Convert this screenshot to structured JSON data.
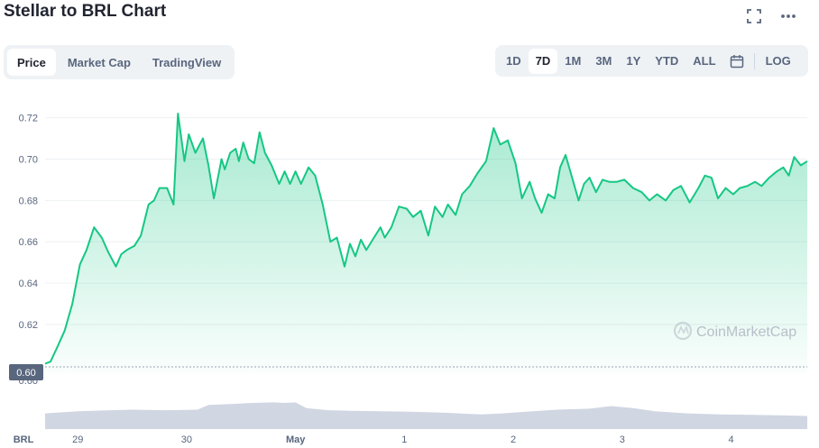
{
  "title": "Stellar to BRL Chart",
  "header_icons": {
    "expand": "expand-icon",
    "more": "more-icon"
  },
  "tabs": [
    {
      "label": "Price",
      "active": true
    },
    {
      "label": "Market Cap",
      "active": false
    },
    {
      "label": "TradingView",
      "active": false
    }
  ],
  "ranges": [
    {
      "label": "1D",
      "active": false
    },
    {
      "label": "7D",
      "active": true
    },
    {
      "label": "1M",
      "active": false
    },
    {
      "label": "3M",
      "active": false
    },
    {
      "label": "1Y",
      "active": false
    },
    {
      "label": "YTD",
      "active": false
    },
    {
      "label": "ALL",
      "active": false
    }
  ],
  "calendar_icon": "calendar-icon",
  "log_label": "LOG",
  "watermark": "CoinMarketCap",
  "colors": {
    "line": "#16c784",
    "volume": "#d0d6e2",
    "accent": "#222531",
    "muted": "#58667e"
  },
  "chart_data": {
    "type": "area",
    "currency_label": "BRL",
    "current_price_label": "0.60",
    "lower_tick_label": "0.60",
    "y_ticks": [
      "0.72",
      "0.70",
      "0.68",
      "0.66",
      "0.64",
      "0.62"
    ],
    "y_tick_values": [
      0.72,
      0.7,
      0.68,
      0.66,
      0.64,
      0.62
    ],
    "ylim": [
      0.596,
      0.7255
    ],
    "reference_line": 0.5995,
    "grid": true,
    "x_ticks": [
      "29",
      "30",
      "May",
      "1",
      "2",
      "3",
      "4"
    ],
    "x_tick_values": [
      0.3,
      1.3,
      2.3,
      3.3,
      4.3,
      5.3,
      6.3
    ],
    "xlim": [
      0,
      7
    ],
    "series": [
      {
        "x": [
          0.0,
          0.05,
          0.12,
          0.18,
          0.25,
          0.32,
          0.38,
          0.45,
          0.52,
          0.58,
          0.65,
          0.7,
          0.75,
          0.82,
          0.88,
          0.95,
          1.0,
          1.05,
          1.12,
          1.18,
          1.22,
          1.28,
          1.32,
          1.38,
          1.45,
          1.5,
          1.55,
          1.58,
          1.62,
          1.65,
          1.7,
          1.75,
          1.78,
          1.82,
          1.87,
          1.92,
          1.97,
          2.02,
          2.08,
          2.15,
          2.2,
          2.25,
          2.3,
          2.35,
          2.42,
          2.48,
          2.55,
          2.62,
          2.68,
          2.75,
          2.8,
          2.85,
          2.9,
          2.95,
          3.02,
          3.08,
          3.12,
          3.18,
          3.25,
          3.32,
          3.38,
          3.45,
          3.52,
          3.58,
          3.65,
          3.7,
          3.77,
          3.83,
          3.9,
          3.97,
          4.05,
          4.12,
          4.18,
          4.25,
          4.32,
          4.38,
          4.45,
          4.5,
          4.56,
          4.62,
          4.68,
          4.73,
          4.78,
          4.84,
          4.9,
          4.95,
          5.0,
          5.06,
          5.12,
          5.18,
          5.25,
          5.32,
          5.4,
          5.48,
          5.55,
          5.62,
          5.7,
          5.77,
          5.84,
          5.92,
          6.0,
          6.06,
          6.12,
          6.18,
          6.25,
          6.32,
          6.38,
          6.45,
          6.52,
          6.58,
          6.65,
          6.72,
          6.78,
          6.83,
          6.88,
          6.94,
          7.0
        ],
        "y": [
          0.601,
          0.602,
          0.61,
          0.617,
          0.63,
          0.649,
          0.656,
          0.667,
          0.662,
          0.655,
          0.648,
          0.654,
          0.656,
          0.658,
          0.663,
          0.678,
          0.68,
          0.686,
          0.686,
          0.678,
          0.722,
          0.699,
          0.712,
          0.703,
          0.71,
          0.697,
          0.681,
          0.689,
          0.7,
          0.695,
          0.703,
          0.705,
          0.699,
          0.708,
          0.7,
          0.698,
          0.713,
          0.703,
          0.697,
          0.688,
          0.694,
          0.688,
          0.694,
          0.688,
          0.696,
          0.692,
          0.678,
          0.66,
          0.662,
          0.648,
          0.659,
          0.653,
          0.661,
          0.656,
          0.662,
          0.667,
          0.662,
          0.667,
          0.677,
          0.676,
          0.672,
          0.675,
          0.663,
          0.677,
          0.672,
          0.678,
          0.673,
          0.683,
          0.687,
          0.693,
          0.699,
          0.715,
          0.707,
          0.709,
          0.698,
          0.681,
          0.689,
          0.681,
          0.674,
          0.683,
          0.681,
          0.696,
          0.702,
          0.691,
          0.68,
          0.688,
          0.691,
          0.684,
          0.69,
          0.689,
          0.689,
          0.69,
          0.686,
          0.684,
          0.68,
          0.683,
          0.68,
          0.685,
          0.687,
          0.679,
          0.686,
          0.692,
          0.691,
          0.681,
          0.686,
          0.683,
          0.686,
          0.687,
          0.689,
          0.687,
          0.691,
          0.694,
          0.696,
          0.692,
          0.701,
          0.697,
          0.699
        ]
      }
    ],
    "volume": {
      "x": [
        0.0,
        0.3,
        0.6,
        0.8,
        1.1,
        1.4,
        1.5,
        1.7,
        1.9,
        2.1,
        2.2,
        2.3,
        2.4,
        2.6,
        2.8,
        3.1,
        3.4,
        3.7,
        4.0,
        4.2,
        4.4,
        4.7,
        5.0,
        5.2,
        5.4,
        5.6,
        5.9,
        6.2,
        6.5,
        6.8,
        7.0
      ],
      "values": [
        0.3,
        0.34,
        0.36,
        0.37,
        0.36,
        0.37,
        0.46,
        0.48,
        0.5,
        0.51,
        0.5,
        0.51,
        0.4,
        0.36,
        0.35,
        0.34,
        0.33,
        0.31,
        0.28,
        0.3,
        0.33,
        0.37,
        0.39,
        0.44,
        0.4,
        0.34,
        0.3,
        0.28,
        0.27,
        0.26,
        0.25
      ]
    }
  }
}
